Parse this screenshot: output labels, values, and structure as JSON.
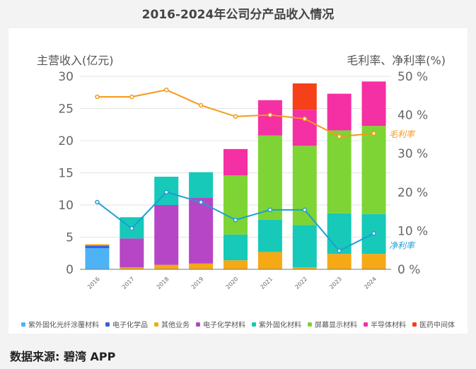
{
  "chart_data": {
    "type": "bar",
    "stacked": true,
    "title": "2016-2024年公司分产品收入情况",
    "ylabel": "主营收入(亿元)",
    "y2label": "毛利率、净利率(%)",
    "ylim": [
      0,
      30
    ],
    "y2lim": [
      0,
      50
    ],
    "yticks": [
      "0",
      "5",
      "10",
      "15",
      "20",
      "25",
      "30"
    ],
    "y2ticks": [
      "0 %",
      "10 %",
      "20 %",
      "30 %",
      "40 %",
      "50 %"
    ],
    "grid": true,
    "legend_position": "bottom",
    "categories": [
      "2016",
      "2017",
      "2018",
      "2019",
      "2020",
      "2021",
      "2022",
      "2023",
      "2024"
    ],
    "series": [
      {
        "name": "紫外固化光纤涂覆材料",
        "color": "#4db3f5",
        "values": [
          3.3,
          0,
          0,
          0,
          0,
          0,
          0,
          0,
          0
        ]
      },
      {
        "name": "电子化学品",
        "color": "#3a5de0",
        "values": [
          0.4,
          0,
          0,
          0,
          0,
          0,
          0,
          0,
          0
        ]
      },
      {
        "name": "其他业务",
        "color": "#f5a915",
        "values": [
          0.2,
          0.3,
          0.7,
          0.9,
          1.4,
          2.7,
          0.3,
          2.4,
          2.4
        ]
      },
      {
        "name": "电子化学材料",
        "color": "#b646c6",
        "values": [
          0,
          4.5,
          9.3,
          10.2,
          0,
          0,
          0,
          0,
          0
        ]
      },
      {
        "name": "紫外固化材料",
        "color": "#16c9b8",
        "values": [
          0,
          3.3,
          4.4,
          4.0,
          4.0,
          5.0,
          6.6,
          6.3,
          6.2
        ]
      },
      {
        "name": "屏幕显示材料",
        "color": "#7ed434",
        "values": [
          0,
          0,
          0,
          0,
          9.2,
          13.1,
          12.3,
          12.9,
          13.7
        ]
      },
      {
        "name": "半导体材料",
        "color": "#f52fa4",
        "values": [
          0,
          0,
          0,
          0,
          4.1,
          5.5,
          5.6,
          5.7,
          6.9
        ]
      },
      {
        "name": "医药中间体",
        "color": "#f5401a",
        "values": [
          0,
          0,
          0,
          0,
          0,
          0,
          4.1,
          0,
          0
        ]
      }
    ],
    "lines": [
      {
        "name": "毛利率",
        "color": "#f59a1a",
        "axis": "right",
        "values": [
          44.7,
          44.7,
          46.5,
          42.5,
          39.6,
          40.0,
          39.0,
          34.4,
          35.2
        ]
      },
      {
        "name": "净利率",
        "color": "#1a9fd6",
        "axis": "right",
        "values": [
          17.4,
          10.6,
          20.0,
          17.4,
          12.8,
          15.4,
          15.4,
          4.8,
          9.3
        ]
      }
    ]
  },
  "source": "数据来源: 碧湾 APP",
  "watermark": "碧湾App"
}
